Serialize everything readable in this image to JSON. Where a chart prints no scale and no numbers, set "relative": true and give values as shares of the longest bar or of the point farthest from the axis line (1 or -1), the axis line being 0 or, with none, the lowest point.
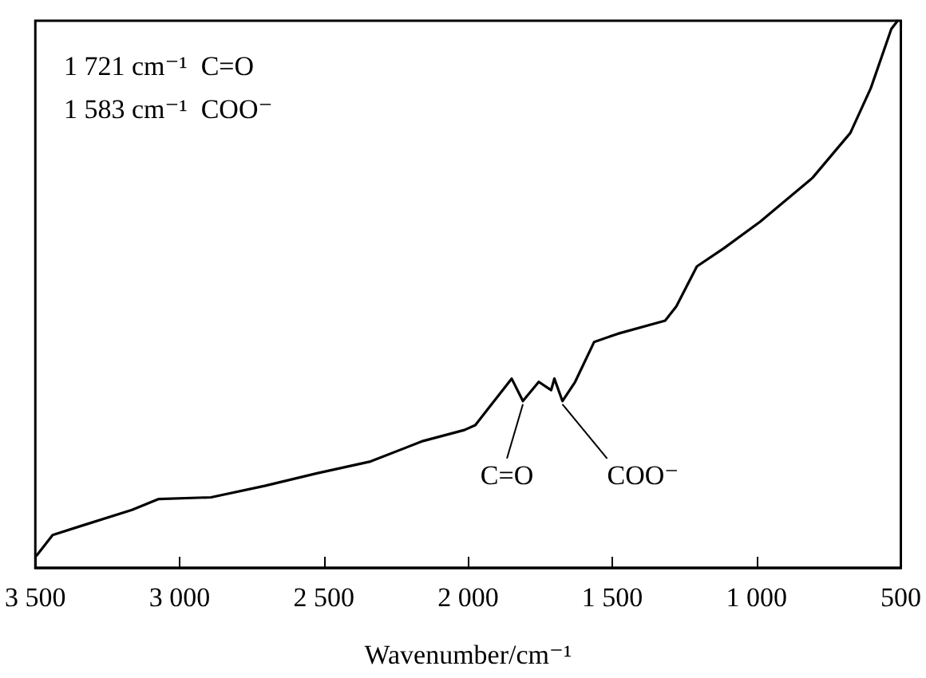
{
  "chart_data": {
    "type": "line",
    "relative": true,
    "xlabel": "Wavenumber/cm⁻¹",
    "xlim": [
      3500,
      500
    ],
    "xticks": [
      {
        "value": 3500,
        "label": "3 500"
      },
      {
        "value": 3000,
        "label": "3 000"
      },
      {
        "value": 2500,
        "label": "2 500"
      },
      {
        "value": 2000,
        "label": "2 000"
      },
      {
        "value": 1500,
        "label": "1 500"
      },
      {
        "value": 1000,
        "label": "1 000"
      },
      500
    ],
    "grid": false,
    "marker": "none",
    "line_style": "solid",
    "annotations": [
      "1 721 cm⁻¹  C=O",
      "1 583 cm⁻¹  COO⁻",
      {
        "text": "C=O",
        "x": 1810,
        "y": 0.305
      },
      {
        "text": "COO⁻",
        "x": 1673,
        "y": 0.305
      }
    ],
    "series": [
      {
        "color": "#000000",
        "x": [
          3495,
          3440,
          3346,
          3165,
          3072,
          2891,
          2705,
          2524,
          2342,
          2156,
          2013,
          1975,
          1849,
          1810,
          1755,
          1712,
          1701,
          1673,
          1629,
          1563,
          1481,
          1317,
          1278,
          1207,
          1114,
          987,
          806,
          675,
          604,
          533,
          511
        ],
        "values": [
          0.023,
          0.06,
          0.076,
          0.106,
          0.126,
          0.129,
          0.15,
          0.173,
          0.194,
          0.232,
          0.252,
          0.261,
          0.346,
          0.305,
          0.34,
          0.325,
          0.346,
          0.305,
          0.34,
          0.413,
          0.428,
          0.452,
          0.478,
          0.551,
          0.584,
          0.633,
          0.713,
          0.795,
          0.877,
          0.985,
          1.0
        ]
      }
    ]
  }
}
